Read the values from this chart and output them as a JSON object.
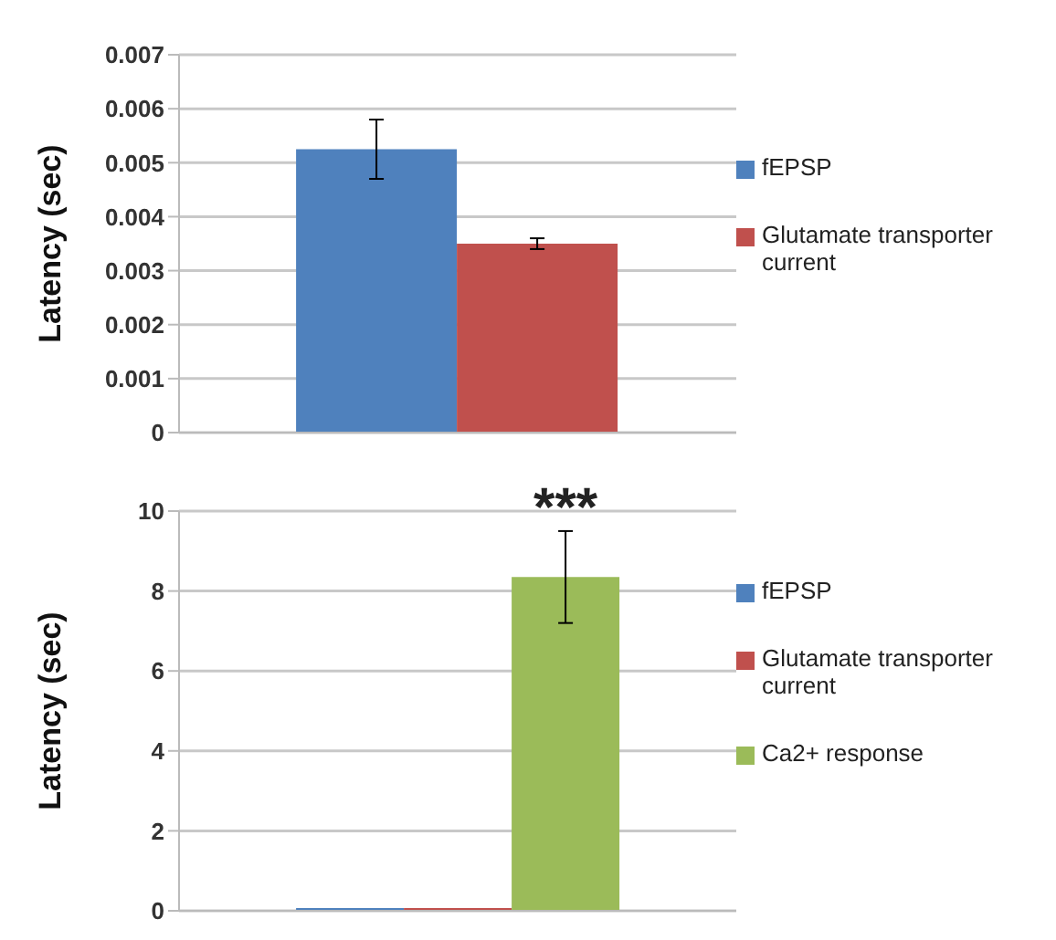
{
  "chart_data": [
    {
      "type": "bar",
      "ylabel": "Latency (sec)",
      "categories": [
        null
      ],
      "series": [
        {
          "name": "fEPSP",
          "color": "#4f81bd",
          "values": [
            0.00525
          ],
          "errors": [
            0.00055
          ]
        },
        {
          "name": "Glutamate transporter current",
          "color": "#c0504d",
          "values": [
            0.0035
          ],
          "errors": [
            0.0001
          ]
        }
      ],
      "ylim": [
        0,
        0.007
      ],
      "yticks": [
        0,
        0.001,
        0.002,
        0.003,
        0.004,
        0.005,
        0.006,
        0.007
      ],
      "grid": "y",
      "legend": "right"
    },
    {
      "type": "bar",
      "ylabel": "Latency (sec)",
      "categories": [
        null
      ],
      "series": [
        {
          "name": "fEPSP",
          "color": "#4f81bd",
          "values": [
            0
          ]
        },
        {
          "name": "Glutamate transporter current",
          "color": "#c0504d",
          "values": [
            0
          ]
        },
        {
          "name": "Ca2+ response",
          "color": "#9bbb59",
          "values": [
            8.35
          ],
          "errors": [
            1.15
          ]
        }
      ],
      "ylim": [
        0,
        10
      ],
      "yticks": [
        0,
        2,
        4,
        6,
        8,
        10
      ],
      "grid": "y",
      "legend": "right",
      "annotations": [
        "***"
      ]
    }
  ]
}
